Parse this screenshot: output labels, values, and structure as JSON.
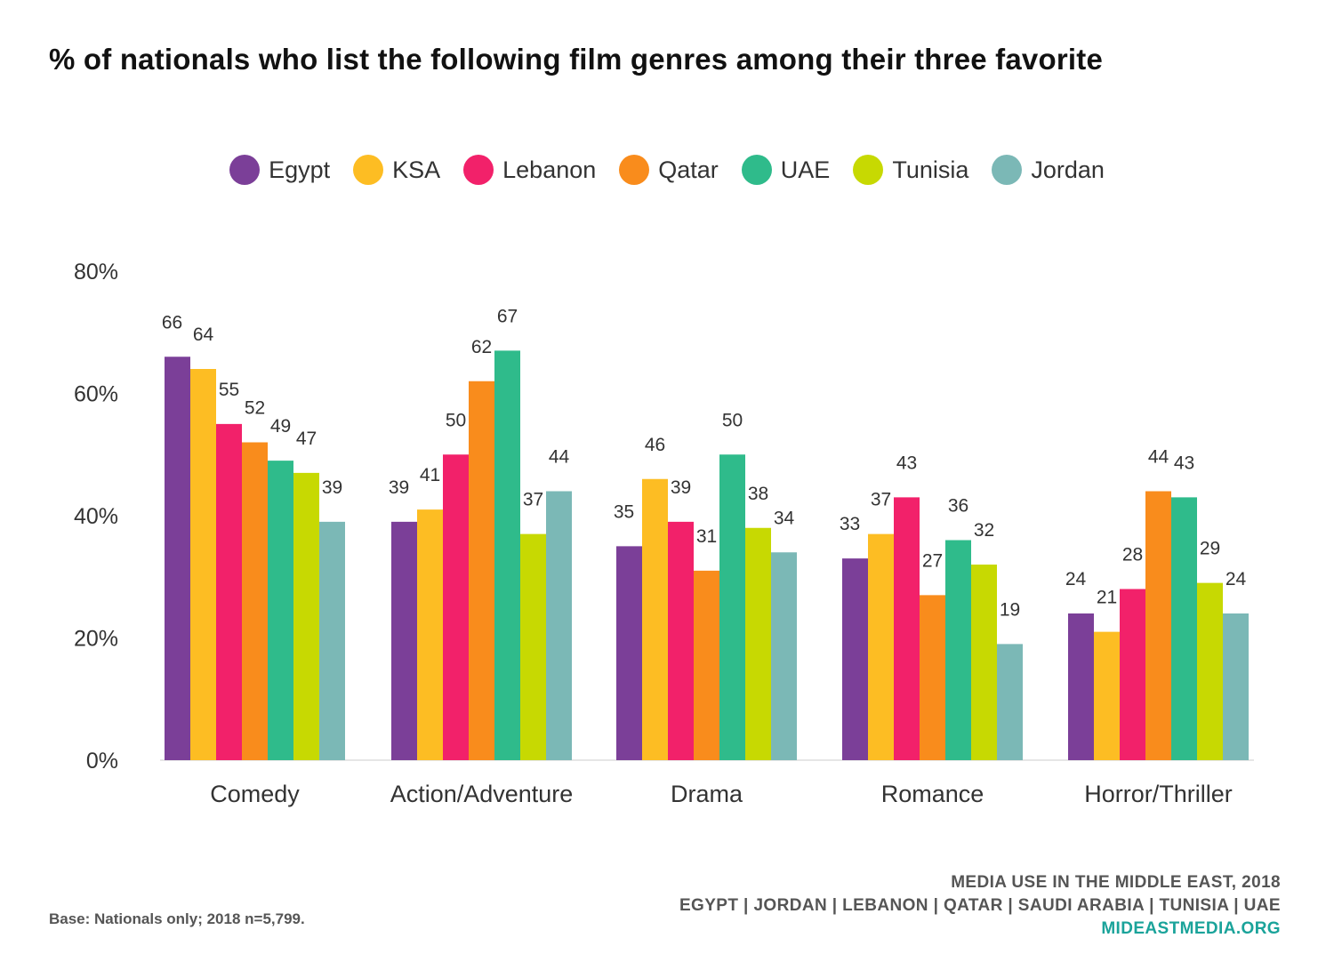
{
  "chart_data": {
    "type": "bar",
    "title": "% of nationals who list the following film genres among their three favorite",
    "categories": [
      "Comedy",
      "Action/Adventure",
      "Drama",
      "Romance",
      "Horror/Thriller"
    ],
    "series": [
      {
        "name": "Egypt",
        "color": "#7b3f98",
        "values": [
          66,
          39,
          35,
          33,
          24
        ]
      },
      {
        "name": "KSA",
        "color": "#fdbd23",
        "values": [
          64,
          41,
          46,
          37,
          21
        ]
      },
      {
        "name": "Lebanon",
        "color": "#f2216a",
        "values": [
          55,
          50,
          39,
          43,
          28
        ]
      },
      {
        "name": "Qatar",
        "color": "#f98c1c",
        "values": [
          52,
          62,
          31,
          27,
          44
        ]
      },
      {
        "name": "UAE",
        "color": "#2fbb8b",
        "values": [
          49,
          67,
          50,
          36,
          43
        ]
      },
      {
        "name": "Tunisia",
        "color": "#c7d902",
        "values": [
          47,
          37,
          38,
          32,
          29
        ]
      },
      {
        "name": "Jordan",
        "color": "#7bb8b6",
        "values": [
          39,
          44,
          34,
          19,
          24
        ]
      }
    ],
    "ylim": [
      0,
      80
    ],
    "yticks": [
      "0%",
      "20%",
      "40%",
      "60%",
      "80%"
    ],
    "xlabel": "",
    "ylabel": "",
    "legend": "top",
    "grid": false
  },
  "footer": {
    "base_note": "Base: Nationals only; 2018 n=5,799.",
    "source_line1": "MEDIA USE IN THE MIDDLE EAST, 2018",
    "source_line2": "EGYPT | JORDAN | LEBANON | QATAR | SAUDI ARABIA | TUNISIA | UAE",
    "source_url": "MIDEASTMEDIA.ORG"
  }
}
